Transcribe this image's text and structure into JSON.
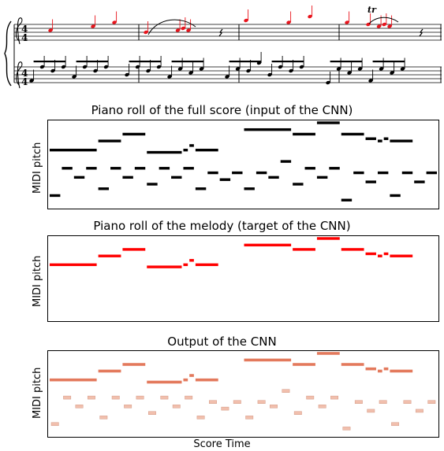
{
  "score": {
    "time_signature_top": "4",
    "time_signature_bottom": "4",
    "trill_marking": "tr",
    "melody_color": "#e8141c",
    "accompaniment_color": "#000000"
  },
  "panels": [
    {
      "title": "Piano roll of the full score (input of the CNN)",
      "ylabel": "MIDI pitch",
      "style": "input"
    },
    {
      "title": "Piano roll of the melody (target of the CNN)",
      "ylabel": "MIDI pitch",
      "style": "target"
    },
    {
      "title": "Output of the CNN",
      "ylabel": "MIDI pitch",
      "style": "output"
    }
  ],
  "xlabel": "Score Time",
  "colors": {
    "input": "#000000",
    "target": "#ff0000",
    "output_strong": "#e06a4a",
    "output_weak": "#f0b8a4"
  },
  "chart_data": {
    "type": "piano-roll",
    "time_range": [
      0,
      32
    ],
    "pitch_range": [
      48,
      84
    ],
    "melody": [
      {
        "start": 0,
        "end": 4,
        "pitch": 72
      },
      {
        "start": 4,
        "end": 6,
        "pitch": 76
      },
      {
        "start": 6,
        "end": 8,
        "pitch": 79
      },
      {
        "start": 8,
        "end": 11,
        "pitch": 71
      },
      {
        "start": 11,
        "end": 11.5,
        "pitch": 72
      },
      {
        "start": 11.5,
        "end": 12,
        "pitch": 74
      },
      {
        "start": 12,
        "end": 14,
        "pitch": 72
      },
      {
        "start": 16,
        "end": 20,
        "pitch": 81
      },
      {
        "start": 20,
        "end": 22,
        "pitch": 79
      },
      {
        "start": 22,
        "end": 24,
        "pitch": 84
      },
      {
        "start": 24,
        "end": 26,
        "pitch": 79
      },
      {
        "start": 26,
        "end": 27,
        "pitch": 77
      },
      {
        "start": 27,
        "end": 27.5,
        "pitch": 76
      },
      {
        "start": 27.5,
        "end": 28,
        "pitch": 77
      },
      {
        "start": 28,
        "end": 30,
        "pitch": 76
      }
    ],
    "accompaniment": [
      {
        "start": 0,
        "end": 1,
        "pitch": 52
      },
      {
        "start": 1,
        "end": 2,
        "pitch": 64
      },
      {
        "start": 2,
        "end": 3,
        "pitch": 60
      },
      {
        "start": 3,
        "end": 4,
        "pitch": 64
      },
      {
        "start": 4,
        "end": 5,
        "pitch": 55
      },
      {
        "start": 5,
        "end": 6,
        "pitch": 64
      },
      {
        "start": 6,
        "end": 7,
        "pitch": 60
      },
      {
        "start": 7,
        "end": 8,
        "pitch": 64
      },
      {
        "start": 8,
        "end": 9,
        "pitch": 57
      },
      {
        "start": 9,
        "end": 10,
        "pitch": 64
      },
      {
        "start": 10,
        "end": 11,
        "pitch": 60
      },
      {
        "start": 11,
        "end": 12,
        "pitch": 64
      },
      {
        "start": 12,
        "end": 13,
        "pitch": 55
      },
      {
        "start": 13,
        "end": 14,
        "pitch": 62
      },
      {
        "start": 14,
        "end": 15,
        "pitch": 59
      },
      {
        "start": 15,
        "end": 16,
        "pitch": 62
      },
      {
        "start": 16,
        "end": 17,
        "pitch": 55
      },
      {
        "start": 17,
        "end": 18,
        "pitch": 62
      },
      {
        "start": 18,
        "end": 19,
        "pitch": 60
      },
      {
        "start": 19,
        "end": 20,
        "pitch": 67
      },
      {
        "start": 20,
        "end": 21,
        "pitch": 57
      },
      {
        "start": 21,
        "end": 22,
        "pitch": 64
      },
      {
        "start": 22,
        "end": 23,
        "pitch": 60
      },
      {
        "start": 23,
        "end": 24,
        "pitch": 64
      },
      {
        "start": 24,
        "end": 25,
        "pitch": 50
      },
      {
        "start": 25,
        "end": 26,
        "pitch": 62
      },
      {
        "start": 26,
        "end": 27,
        "pitch": 58
      },
      {
        "start": 27,
        "end": 28,
        "pitch": 62
      },
      {
        "start": 28,
        "end": 29,
        "pitch": 52
      },
      {
        "start": 29,
        "end": 30,
        "pitch": 62
      },
      {
        "start": 30,
        "end": 31,
        "pitch": 58
      },
      {
        "start": 31,
        "end": 32,
        "pitch": 62
      }
    ]
  }
}
